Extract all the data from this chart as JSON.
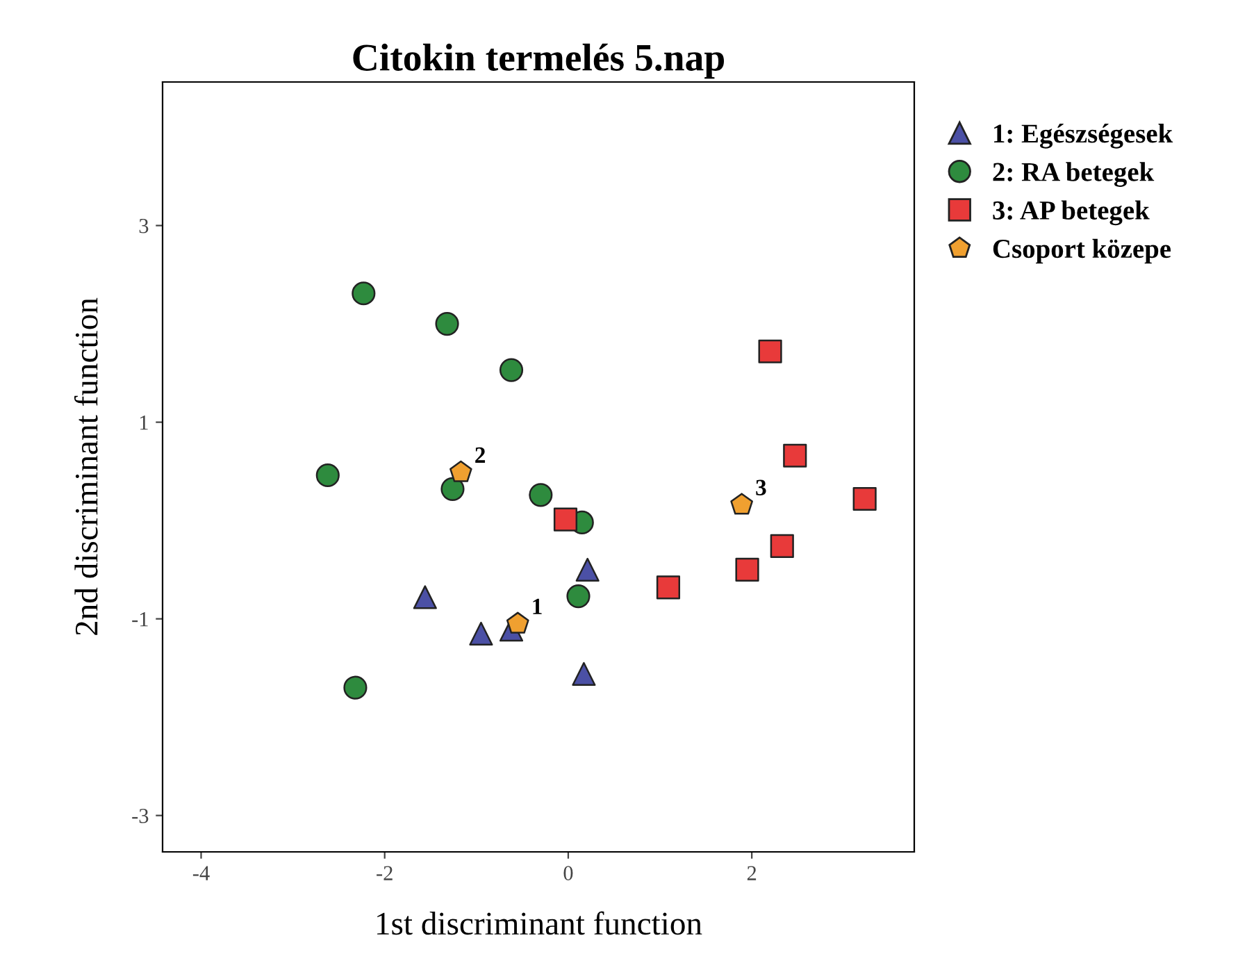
{
  "chart_data": {
    "type": "scatter",
    "title": "Citokin termelés 5.nap",
    "xlabel": "1st discriminant function",
    "ylabel": "2nd discriminant function",
    "xlim": [
      -4.42,
      3.77
    ],
    "ylim": [
      -3.37,
      4.46
    ],
    "xticks": [
      -4,
      -2,
      0,
      2
    ],
    "yticks": [
      -3,
      -1,
      1,
      3
    ],
    "grid": false,
    "legend": "right",
    "series": [
      {
        "name": "1: Egészségesek",
        "color": "#4b50a5",
        "marker": "triangle",
        "x": [
          -1.56,
          -0.95,
          -0.62,
          0.21,
          0.17
        ],
        "values": [
          -0.78,
          -1.15,
          -1.11,
          -0.5,
          -1.56
        ]
      },
      {
        "name": "2: RA betegek",
        "color": "#2e8b3e",
        "marker": "circle",
        "x": [
          -2.23,
          -1.32,
          -0.62,
          -2.62,
          -1.26,
          -0.3,
          0.15,
          0.11,
          -2.32
        ],
        "values": [
          2.31,
          2.0,
          1.53,
          0.46,
          0.32,
          0.26,
          -0.02,
          -0.77,
          -1.7
        ]
      },
      {
        "name": "3: AP betegek",
        "color": "#e83a3a",
        "marker": "square",
        "x": [
          2.2,
          2.47,
          3.23,
          -0.03,
          2.33,
          1.95,
          1.09
        ],
        "values": [
          1.72,
          0.66,
          0.22,
          0.01,
          -0.26,
          -0.5,
          -0.68
        ]
      },
      {
        "name": "Csoport közepe",
        "color": "#f0a030",
        "x": [
          -1.17,
          1.89,
          -0.55
        ],
        "values": [
          0.49,
          0.16,
          -1.05
        ]
      }
    ],
    "annotations": [
      {
        "text": "2",
        "x": -1.17,
        "y": 0.49
      },
      {
        "text": "3",
        "x": 1.89,
        "y": 0.16
      },
      {
        "text": "1",
        "x": -0.55,
        "y": -1.05
      }
    ]
  }
}
